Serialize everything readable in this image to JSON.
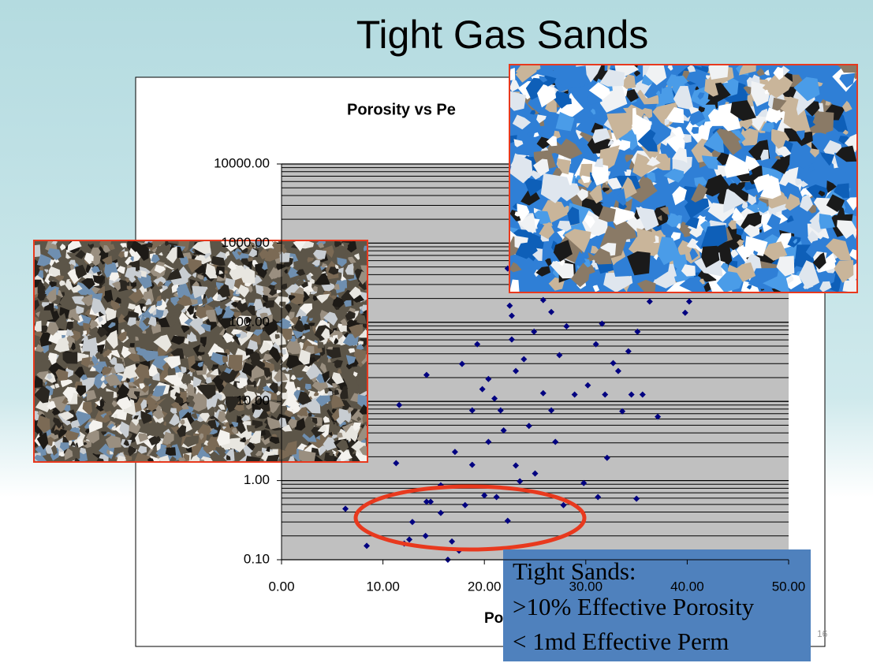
{
  "slide_title": "Tight Gas Sands",
  "chart_data": {
    "type": "scatter",
    "title": "Porosity vs Pe",
    "x_label": "Po",
    "color": "#000080",
    "log_y": true,
    "grid": true,
    "minor_grid": true,
    "xlim": [
      0,
      50
    ],
    "xticks": [
      {
        "value": 0,
        "label": "0.00"
      },
      {
        "value": 10,
        "label": "10.00"
      },
      {
        "value": 20,
        "label": "20.00"
      },
      {
        "value": 30,
        "label": "30.00"
      },
      {
        "value": 40,
        "label": "40.00"
      },
      {
        "value": 50,
        "label": "50.00"
      }
    ],
    "ylim": [
      0.1,
      10000
    ],
    "yticks": [
      {
        "value": 0.1,
        "label": "0.10"
      },
      {
        "value": 1,
        "label": "1.00"
      },
      {
        "value": 10,
        "label": "10.00"
      },
      {
        "value": 100,
        "label": "100.00"
      },
      {
        "value": 1000,
        "label": "1000.00"
      },
      {
        "value": 10000,
        "label": "10000.00"
      }
    ],
    "x": [
      6.3,
      8.4,
      11.3,
      11.6,
      12.1,
      12.6,
      12.9,
      14.3,
      14.3,
      14.7,
      17.8,
      16.4,
      16.8,
      17.5,
      15.7,
      17.1,
      18.8,
      19.3,
      19.8,
      20.0,
      21.0,
      21.6,
      22.3,
      22.5,
      22.7,
      23.1,
      23.5,
      23.9,
      24.4,
      24.9,
      25.8,
      26.6,
      27.0,
      27.8,
      28.1,
      28.9,
      29.8,
      30.2,
      31.0,
      31.6,
      32.1,
      32.7,
      33.6,
      34.2,
      34.5,
      35.0,
      35.1,
      35.6,
      36.3,
      37.1,
      39.8,
      40.2,
      22.3,
      21.2,
      18.1,
      20.4,
      21.9,
      23.1,
      25.0,
      26.6,
      31.2,
      31.9,
      33.2,
      27.4,
      25.8,
      22.7,
      20.4,
      18.8,
      15.7,
      14.2
    ],
    "values": [
      0.44,
      0.15,
      1.66,
      9.0,
      0.16,
      0.18,
      0.3,
      0.54,
      21.6,
      0.54,
      29.8,
      0.1,
      0.17,
      0.13,
      0.87,
      2.3,
      1.58,
      52.8,
      14.3,
      0.65,
      10.9,
      7.7,
      478,
      162,
      60.7,
      24.2,
      0.98,
      34.2,
      4.9,
      76,
      12.7,
      135,
      3.08,
      0.49,
      89,
      12.2,
      0.93,
      16.0,
      52.8,
      96,
      1.94,
      30.5,
      7.5,
      43,
      12.2,
      0.59,
      76,
      12.2,
      183,
      6.4,
      132,
      183,
      0.31,
      0.62,
      0.49,
      3.08,
      4.3,
      1.55,
      1.23,
      7.7,
      0.62,
      12.2,
      24.2,
      38.4,
      191,
      121,
      19.2,
      7.7,
      0.39,
      0.2
    ]
  },
  "callout": {
    "lines": [
      "Tight Sands:",
      ">10% Effective Porosity",
      "< 1md Effective Perm"
    ]
  },
  "page_number": "16"
}
